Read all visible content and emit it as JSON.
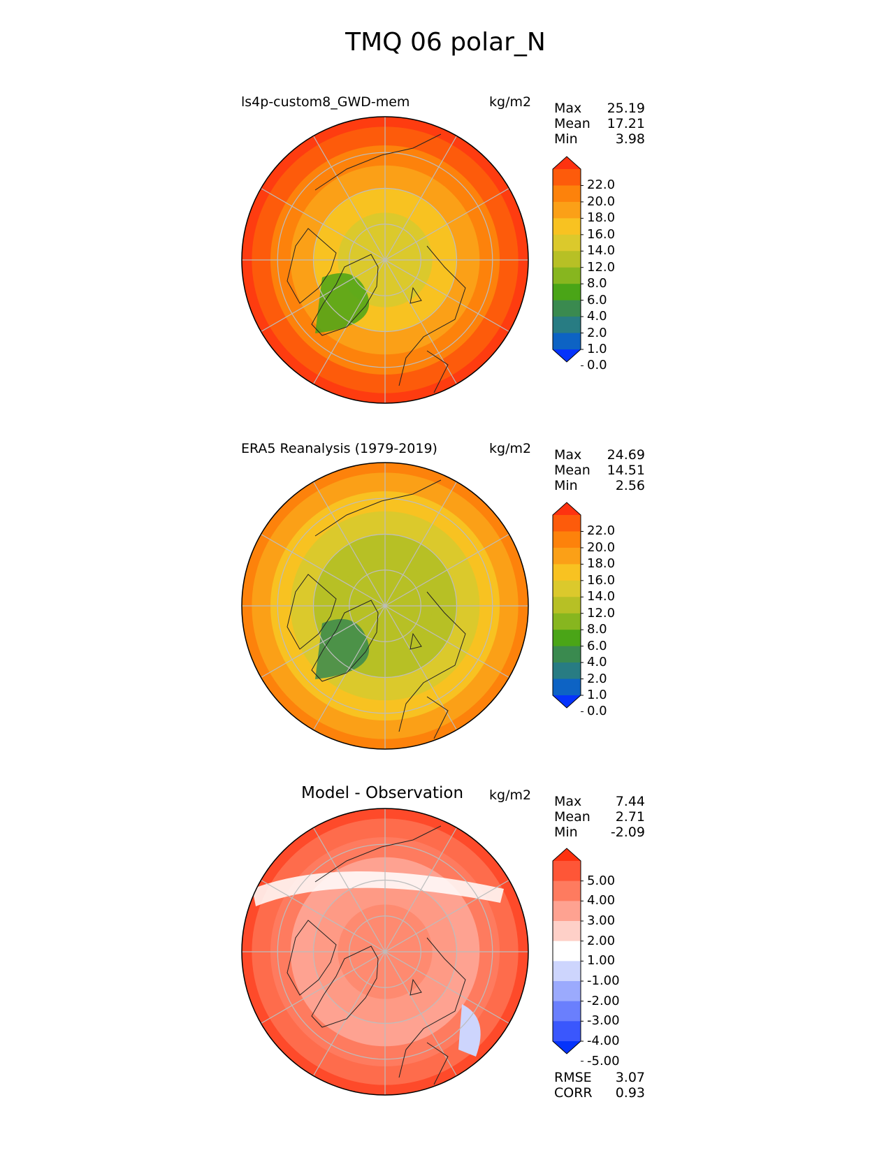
{
  "title": "TMQ 06 polar_N",
  "panels": [
    {
      "name": "test",
      "title": "ls4p-custom8_GWD-mem",
      "units": "kg/m2",
      "stats": [
        {
          "label": "Max",
          "value": "25.19"
        },
        {
          "label": "Mean",
          "value": "17.21"
        },
        {
          "label": "Min",
          "value": "3.98"
        }
      ],
      "colorbar": {
        "ticks": [
          "22.0",
          "20.0",
          "18.0",
          "16.0",
          "14.0",
          "12.0",
          "8.0",
          "6.0",
          "4.0",
          "2.0",
          "1.0",
          "0.0"
        ],
        "colors": [
          "#fe3210",
          "#fd5b0b",
          "#fd820b",
          "#fba017",
          "#f8c221",
          "#dbc92c",
          "#b7c025",
          "#87b61f",
          "#4aa517",
          "#3a8a4f",
          "#287c83",
          "#0d63c4",
          "#0533fb"
        ]
      }
    },
    {
      "name": "reference",
      "title": "ERA5 Reanalysis (1979-2019)",
      "units": "kg/m2",
      "stats": [
        {
          "label": "Max",
          "value": "24.69"
        },
        {
          "label": "Mean",
          "value": "14.51"
        },
        {
          "label": "Min",
          "value": "2.56"
        }
      ],
      "colorbar": {
        "ticks": [
          "22.0",
          "20.0",
          "18.0",
          "16.0",
          "14.0",
          "12.0",
          "8.0",
          "6.0",
          "4.0",
          "2.0",
          "1.0",
          "0.0"
        ],
        "colors": [
          "#fe3210",
          "#fd5b0b",
          "#fd820b",
          "#fba017",
          "#f8c221",
          "#dbc92c",
          "#b7c025",
          "#87b61f",
          "#4aa517",
          "#3a8a4f",
          "#287c83",
          "#0d63c4",
          "#0533fb"
        ]
      }
    },
    {
      "name": "difference",
      "title": "Model - Observation",
      "units": "kg/m2",
      "stats": [
        {
          "label": "Max",
          "value": "7.44"
        },
        {
          "label": "Mean",
          "value": "2.71"
        },
        {
          "label": "Min",
          "value": "-2.09"
        }
      ],
      "colorbar": {
        "ticks": [
          "5.00",
          "4.00",
          "3.00",
          "2.00",
          "1.00",
          "-1.00",
          "-2.00",
          "-3.00",
          "-4.00",
          "-5.00"
        ],
        "colors": [
          "#fe3210",
          "#fe5637",
          "#fe7b5f",
          "#fea291",
          "#fed0c8",
          "#ffffff",
          "#cdd5fd",
          "#9baafd",
          "#6a7ffd",
          "#3a57fd",
          "#0533fb"
        ]
      },
      "metrics": [
        {
          "label": "RMSE",
          "value": "3.07"
        },
        {
          "label": "CORR",
          "value": "0.93"
        }
      ]
    }
  ],
  "map_colors": {
    "test": [
      "#fe3c10",
      "#fd5b0b",
      "#fd820b",
      "#fba017",
      "#f8c221",
      "#dbc92c"
    ],
    "reference": [
      "#fd820b",
      "#fba017",
      "#f8c221",
      "#dbc92c",
      "#b7c025",
      "#b7c025"
    ],
    "difference": [
      "#fe4a2a",
      "#fe6c4c",
      "#fe7b5f",
      "#fea291",
      "#fe9a85",
      "#fe8a70"
    ]
  },
  "grid_color": "#bdbdbd"
}
